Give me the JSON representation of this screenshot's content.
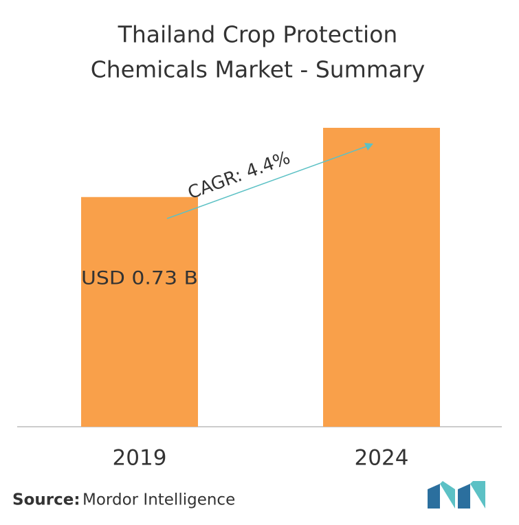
{
  "chart_data": {
    "type": "bar",
    "title": "Thailand  Crop Protection",
    "subtitle": "Chemicals Market  - Summary",
    "categories": [
      "2019",
      "2024"
    ],
    "values": [
      0.73,
      0.95
    ],
    "value_labels": [
      "USD 0.73 B",
      null
    ],
    "color": "#f9a04a",
    "annotation": "CAGR: 4.4%",
    "source_label": "Source:",
    "source": "Mordor Intelligence"
  }
}
